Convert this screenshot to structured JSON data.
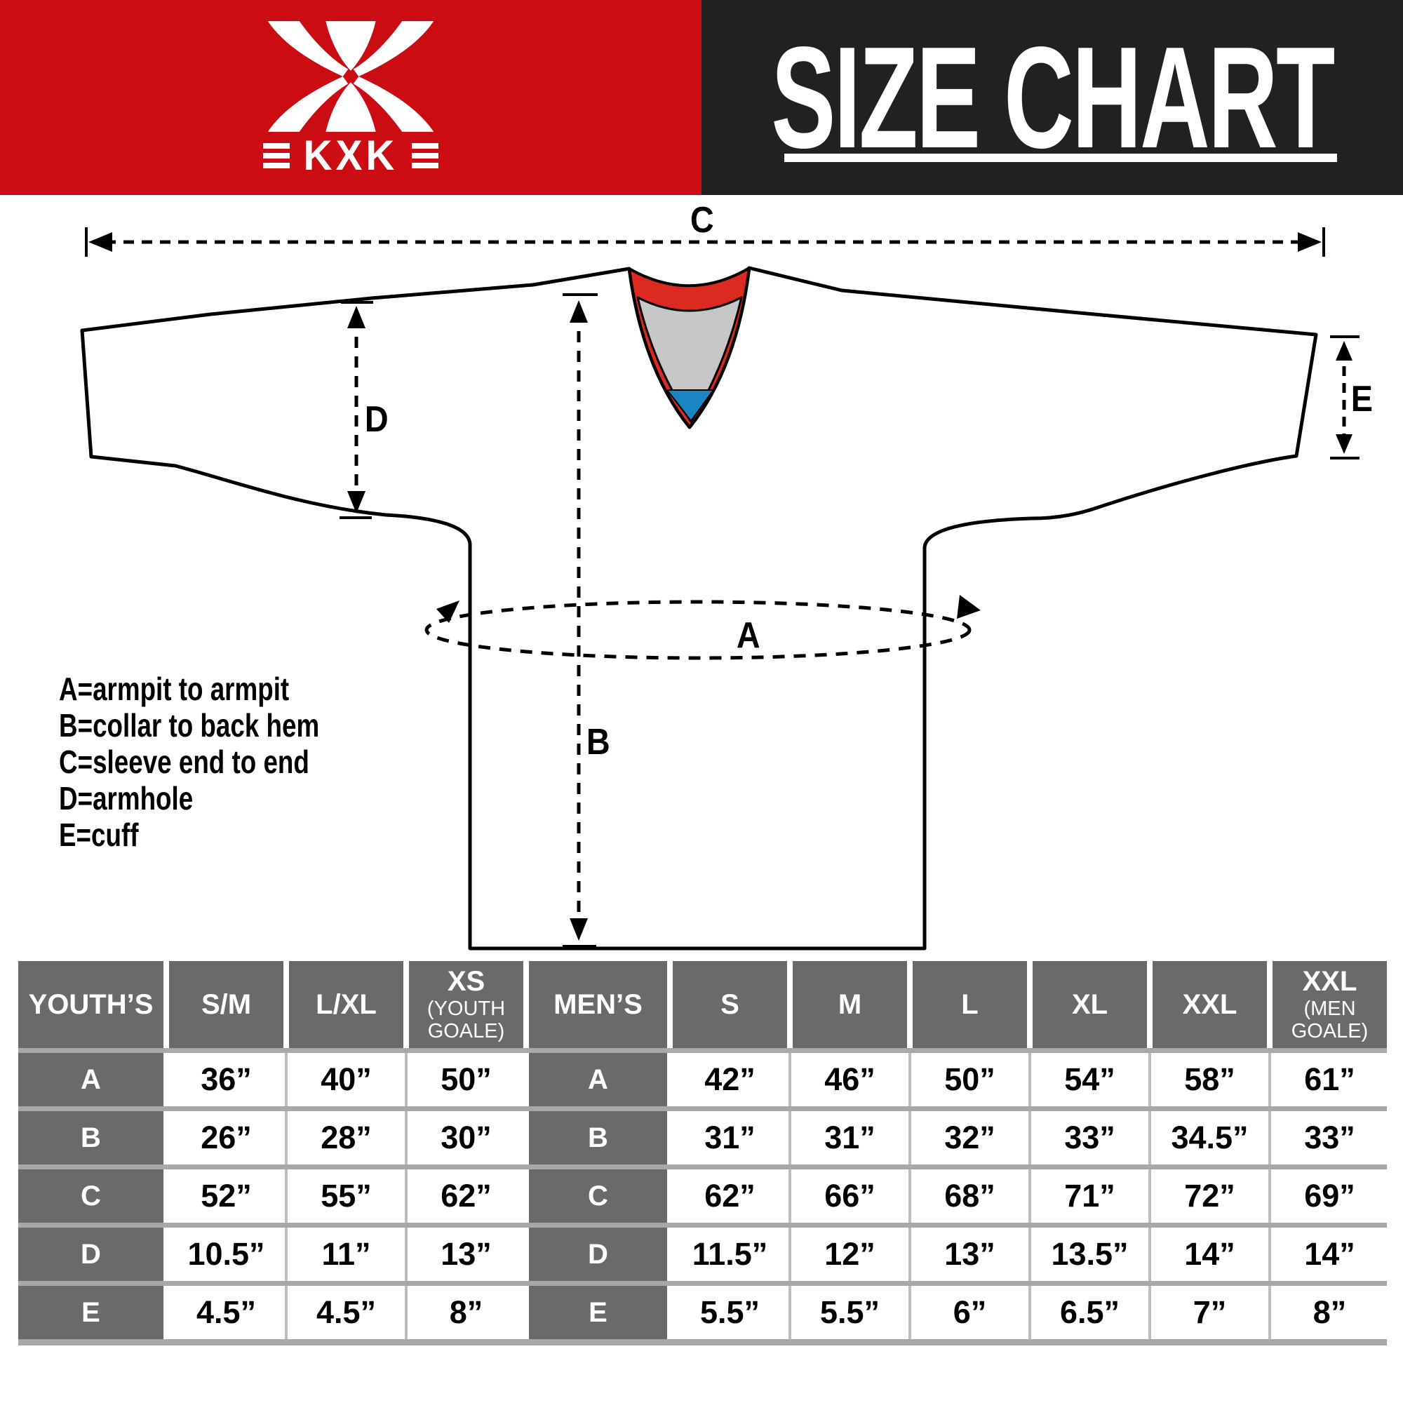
{
  "colors": {
    "header_red": "#cb0c13",
    "header_dark": "#232021",
    "collar_red": "#dc2a21",
    "collar_gray": "#c7c7c7",
    "collar_blue": "#1b84c2",
    "table_cell_dark": "#6a6a6a",
    "separator_gray": "#a8a8a8"
  },
  "brand": {
    "name": "KXK"
  },
  "header": {
    "title": "SIZE CHART"
  },
  "diagram": {
    "markers": {
      "a": "A",
      "b": "B",
      "c": "C",
      "d": "D",
      "e": "E"
    },
    "legend": [
      "A=armpit to armpit",
      "B=collar to back hem",
      "C=sleeve end to end",
      "D=armhole",
      "E=cuff"
    ]
  },
  "size_table": {
    "columns": [
      {
        "label": "YOUTH’S",
        "kind": "label"
      },
      {
        "label": "S/M",
        "kind": "value"
      },
      {
        "label": "L/XL",
        "kind": "value"
      },
      {
        "label": "XS",
        "sub": "(YOUTH\nGOALE)",
        "kind": "value"
      },
      {
        "label": "MEN’S",
        "kind": "label"
      },
      {
        "label": "S",
        "kind": "value"
      },
      {
        "label": "M",
        "kind": "value"
      },
      {
        "label": "L",
        "kind": "value"
      },
      {
        "label": "XL",
        "kind": "value"
      },
      {
        "label": "XXL",
        "kind": "value"
      },
      {
        "label": "XXL",
        "sub": "(MEN\nGOALE)",
        "kind": "value"
      }
    ],
    "rows": [
      {
        "cells": [
          "A",
          "36”",
          "40”",
          "50”",
          "A",
          "42”",
          "46”",
          "50”",
          "54”",
          "58”",
          "61”"
        ]
      },
      {
        "cells": [
          "B",
          "26”",
          "28”",
          "30”",
          "B",
          "31”",
          "31”",
          "32”",
          "33”",
          "34.5”",
          "33”"
        ]
      },
      {
        "cells": [
          "C",
          "52”",
          "55”",
          "62”",
          "C",
          "62”",
          "66”",
          "68”",
          "71”",
          "72”",
          "69”"
        ]
      },
      {
        "cells": [
          "D",
          "10.5”",
          "11”",
          "13”",
          "D",
          "11.5”",
          "12”",
          "13”",
          "13.5”",
          "14”",
          "14”"
        ]
      },
      {
        "cells": [
          "E",
          "4.5”",
          "4.5”",
          "8”",
          "E",
          "5.5”",
          "5.5”",
          "6”",
          "6.5”",
          "7”",
          "8”"
        ]
      }
    ]
  }
}
